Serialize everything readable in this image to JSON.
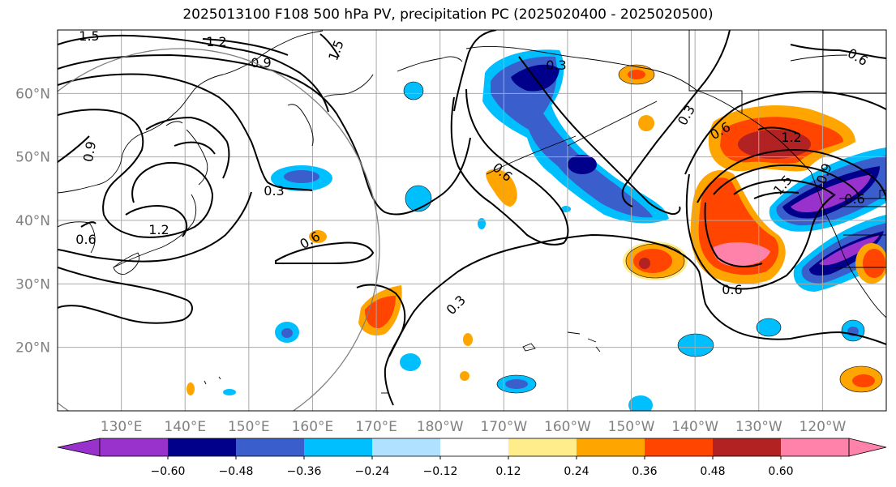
{
  "title": "2025013100 F108 500 hPa PV, precipitation PC (2025020400 - 2025020500)",
  "map": {
    "lon_range": [
      120,
      -110
    ],
    "lat_range": [
      10,
      70
    ],
    "lat_ticks": [
      {
        "value": 20,
        "label": "20°N"
      },
      {
        "value": 30,
        "label": "30°N"
      },
      {
        "value": 40,
        "label": "40°N"
      },
      {
        "value": 50,
        "label": "50°N"
      },
      {
        "value": 60,
        "label": "60°N"
      }
    ],
    "lon_ticks": [
      {
        "value": 130,
        "label": "130°E"
      },
      {
        "value": 140,
        "label": "140°E"
      },
      {
        "value": 150,
        "label": "150°E"
      },
      {
        "value": 160,
        "label": "160°E"
      },
      {
        "value": 170,
        "label": "170°E"
      },
      {
        "value": 180,
        "label": "180°W"
      },
      {
        "value": 190,
        "label": "170°W"
      },
      {
        "value": 200,
        "label": "160°W"
      },
      {
        "value": 210,
        "label": "150°W"
      },
      {
        "value": 220,
        "label": "140°W"
      },
      {
        "value": 230,
        "label": "130°W"
      },
      {
        "value": 240,
        "label": "120°W"
      }
    ],
    "contour_labels": [
      "1.5",
      "1.2",
      "0.9",
      "1.5",
      "0.6",
      "0.9",
      "1.2",
      "0.3",
      "0.6",
      "0.6",
      "0.3",
      "0.3",
      "0.6",
      "1.2",
      "0.9",
      "1.5",
      "0.6",
      "0.6",
      "0.3",
      "0.6"
    ]
  },
  "colorbar": {
    "colors": [
      "#9932cc",
      "#00008b",
      "#3a5fcd",
      "#00bfff",
      "#b0e2ff",
      "#ffffff",
      "#ffec8b",
      "#ffa500",
      "#ff4500",
      "#b22222",
      "#ff82ab"
    ],
    "tick_labels": [
      "−0.60",
      "−0.48",
      "−0.36",
      "−0.24",
      "−0.12",
      "0.12",
      "0.24",
      "0.36",
      "0.48",
      "0.60"
    ]
  },
  "colors": {
    "grid": "#a9a9a9",
    "circle": "#808080",
    "contour": "#000000"
  }
}
